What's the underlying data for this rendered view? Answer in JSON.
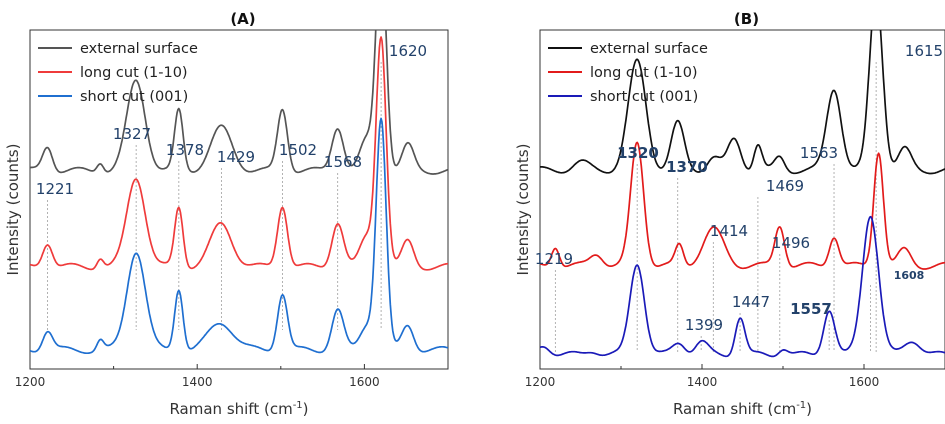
{
  "chart_data": [
    {
      "panel": "(A)",
      "type": "line",
      "xlabel": "Raman shift (cm",
      "xlabel_sup": "-1",
      "xlabel_tail": ")",
      "ylabel": "Intensity (counts)",
      "xlim": [
        1200,
        1700
      ],
      "xticks": [
        1200,
        1400,
        1600
      ],
      "legend_position": "top-left",
      "grid": false,
      "series": [
        {
          "name": "external surface",
          "color": "#555555",
          "offset": 0.56,
          "peaks": [
            [
              1221,
              0.1,
              6
            ],
            [
              1284,
              0.04,
              4
            ],
            [
              1327,
              0.36,
              11
            ],
            [
              1378,
              0.24,
              5
            ],
            [
              1429,
              0.17,
              13
            ],
            [
              1502,
              0.25,
              6
            ],
            [
              1568,
              0.18,
              7
            ],
            [
              1603,
              0.12,
              8
            ],
            [
              1620,
              0.92,
              6
            ],
            [
              1652,
              0.1,
              7
            ]
          ]
        },
        {
          "name": "long cut (1-10)",
          "color": "#ef3b3b",
          "offset": 0.26,
          "peaks": [
            [
              1221,
              0.1,
              6
            ],
            [
              1284,
              0.04,
              4
            ],
            [
              1327,
              0.36,
              11
            ],
            [
              1378,
              0.24,
              5
            ],
            [
              1429,
              0.17,
              13
            ],
            [
              1502,
              0.25,
              6
            ],
            [
              1568,
              0.18,
              7
            ],
            [
              1603,
              0.12,
              8
            ],
            [
              1620,
              0.92,
              6
            ],
            [
              1652,
              0.1,
              7
            ]
          ]
        },
        {
          "name": "short cut (001)",
          "color": "#1f6fd0",
          "offset": 0.0,
          "peaks": [
            [
              1221,
              0.08,
              6
            ],
            [
              1284,
              0.04,
              4
            ],
            [
              1327,
              0.4,
              11
            ],
            [
              1378,
              0.25,
              5
            ],
            [
              1429,
              0.11,
              15
            ],
            [
              1502,
              0.23,
              6
            ],
            [
              1568,
              0.16,
              7
            ],
            [
              1603,
              0.1,
              8
            ],
            [
              1620,
              0.92,
              6
            ],
            [
              1652,
              0.1,
              7
            ]
          ]
        }
      ],
      "annotations": [
        {
          "x": 1221,
          "label": "1221",
          "style": "normal"
        },
        {
          "x": 1327,
          "label": "1327",
          "style": "normal"
        },
        {
          "x": 1378,
          "label": "1378",
          "style": "normal"
        },
        {
          "x": 1429,
          "label": "1429",
          "style": "normal"
        },
        {
          "x": 1502,
          "label": "1502",
          "style": "normal"
        },
        {
          "x": 1568,
          "label": "1568",
          "style": "normal"
        },
        {
          "x": 1620,
          "label": "1620",
          "style": "normal"
        }
      ]
    },
    {
      "panel": "(B)",
      "type": "line",
      "xlabel": "Raman shift (cm",
      "xlabel_sup": "-1",
      "xlabel_tail": ")",
      "ylabel": "Intensity (counts)",
      "xlim": [
        1200,
        1700
      ],
      "xticks": [
        1200,
        1400,
        1600
      ],
      "legend_position": "top-left",
      "grid": false,
      "series": [
        {
          "name": "external surface",
          "color": "#111111",
          "offset": 0.56,
          "peaks": [
            [
              1250,
              0.03,
              10
            ],
            [
              1320,
              0.42,
              11
            ],
            [
              1370,
              0.18,
              8
            ],
            [
              1414,
              0.05,
              8
            ],
            [
              1440,
              0.12,
              8
            ],
            [
              1469,
              0.1,
              5
            ],
            [
              1496,
              0.05,
              6
            ],
            [
              1563,
              0.32,
              9
            ],
            [
              1615,
              0.7,
              8
            ],
            [
              1650,
              0.08,
              8
            ]
          ]
        },
        {
          "name": "long cut (1-10)",
          "color": "#e21b1b",
          "offset": 0.27,
          "peaks": [
            [
              1219,
              0.08,
              5
            ],
            [
              1270,
              0.05,
              8
            ],
            [
              1320,
              0.48,
              8
            ],
            [
              1372,
              0.08,
              5
            ],
            [
              1414,
              0.14,
              13
            ],
            [
              1496,
              0.16,
              6
            ],
            [
              1563,
              0.12,
              6
            ],
            [
              1618,
              0.45,
              6
            ],
            [
              1650,
              0.06,
              8
            ]
          ]
        },
        {
          "name": "short cut (001)",
          "color": "#1a1ab8",
          "offset": 0.0,
          "peaks": [
            [
              1205,
              0.04,
              8
            ],
            [
              1265,
              0.02,
              8
            ],
            [
              1320,
              0.36,
              9
            ],
            [
              1372,
              0.05,
              8
            ],
            [
              1399,
              0.05,
              8
            ],
            [
              1447,
              0.15,
              6
            ],
            [
              1500,
              0.03,
              6
            ],
            [
              1557,
              0.18,
              7
            ],
            [
              1608,
              0.55,
              10
            ],
            [
              1660,
              0.06,
              10
            ]
          ]
        }
      ],
      "annotations": [
        {
          "x": 1219,
          "label": "1219",
          "style": "normal"
        },
        {
          "x": 1320,
          "label": "1320",
          "style": "bold"
        },
        {
          "x": 1370,
          "label": "1370",
          "style": "bold"
        },
        {
          "x": 1399,
          "label": "1399",
          "style": "normal"
        },
        {
          "x": 1414,
          "label": "1414",
          "style": "normal"
        },
        {
          "x": 1447,
          "label": "1447",
          "style": "normal"
        },
        {
          "x": 1469,
          "label": "1469",
          "style": "normal"
        },
        {
          "x": 1496,
          "label": "1496",
          "style": "normal"
        },
        {
          "x": 1557,
          "label": "1557",
          "style": "bold"
        },
        {
          "x": 1563,
          "label": "1563",
          "style": "normal"
        },
        {
          "x": 1608,
          "label": "1608",
          "style": "small"
        },
        {
          "x": 1615,
          "label": "1615",
          "style": "normal"
        }
      ]
    }
  ]
}
